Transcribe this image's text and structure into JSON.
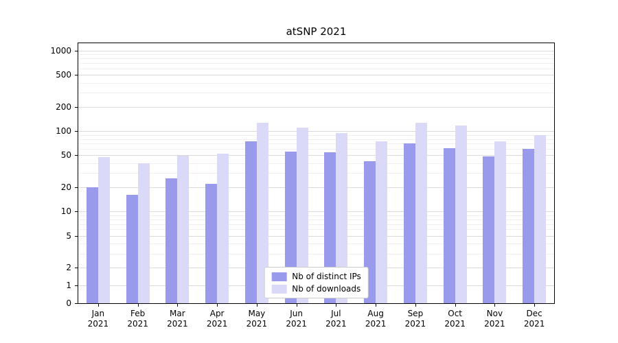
{
  "chart_data": {
    "type": "bar",
    "title": "atSNP 2021",
    "categories": [
      "Jan",
      "Feb",
      "Mar",
      "Apr",
      "May",
      "Jun",
      "Jul",
      "Aug",
      "Sep",
      "Oct",
      "Nov",
      "Dec"
    ],
    "category_year": "2021",
    "series": [
      {
        "name": "Nb of distinct IPs",
        "color": "#9a9aec",
        "values": [
          20,
          16,
          26,
          22,
          75,
          56,
          55,
          42,
          70,
          62,
          49,
          60
        ]
      },
      {
        "name": "Nb of downloads",
        "color": "#dadaf8",
        "values": [
          48,
          40,
          50,
          53,
          128,
          110,
          95,
          75,
          127,
          118,
          75,
          90
        ]
      }
    ],
    "yaxis": {
      "scale": "symlog",
      "linthresh": 2,
      "ticks": [
        0,
        1,
        2,
        5,
        10,
        20,
        50,
        100,
        200,
        500,
        1000
      ],
      "minor_ticks": [
        3,
        4,
        6,
        7,
        8,
        9,
        30,
        40,
        60,
        70,
        80,
        90,
        300,
        400,
        600,
        700,
        800,
        900
      ],
      "ylim": [
        0,
        1250
      ]
    },
    "legend": {
      "position": "lower center"
    },
    "grid": "horizontal",
    "colors": {
      "major_grid": "#d9d9d9",
      "minor_grid": "#efefef",
      "axis": "#000000",
      "legend_border": "#cccccc"
    }
  }
}
